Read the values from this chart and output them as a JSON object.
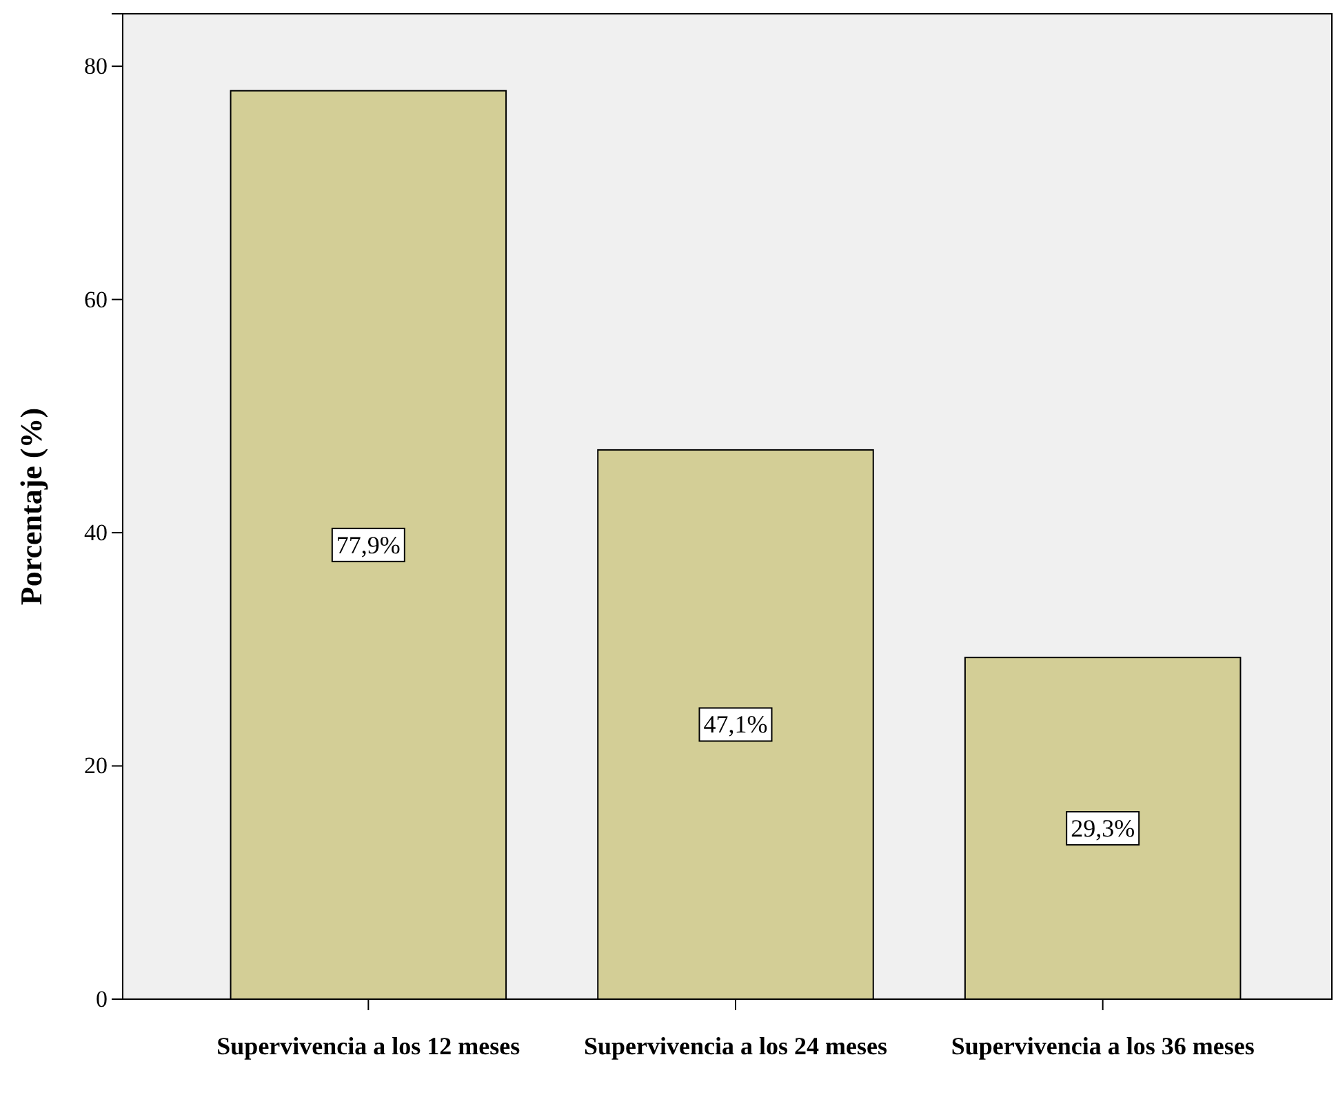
{
  "chart_data": {
    "type": "bar",
    "ylabel": "Porcentaje (%)",
    "categories": [
      "Supervivencia a los 12 meses",
      "Supervivencia a los 24 meses",
      "Supervivencia a los 36 meses"
    ],
    "values": [
      77.9,
      47.1,
      29.3
    ],
    "color": "#d3ce96",
    "value_labels": [
      "77,9%",
      "47,1%",
      "29,3%"
    ],
    "ylim": [
      0,
      84.5
    ],
    "yticks": [
      0,
      20,
      40,
      60,
      80
    ],
    "grid": false
  }
}
